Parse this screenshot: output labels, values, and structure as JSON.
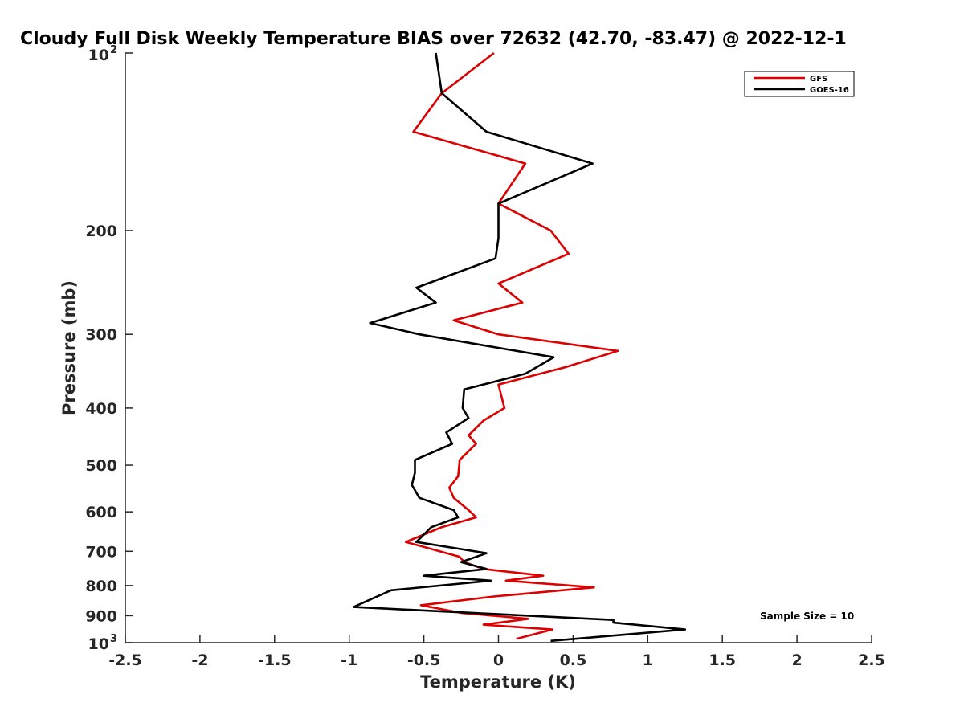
{
  "chart_data": {
    "type": "line",
    "title": "Cloudy Full Disk Weekly Temperature BIAS over 72632 (42.70, -83.47) @ 2022-12-1",
    "xlabel": "Temperature (K)",
    "ylabel": "Pressure (mb)",
    "xlim": [
      -2.5,
      2.5
    ],
    "ylim": [
      1000,
      100
    ],
    "yscale": "log",
    "xticks": [
      -2.5,
      -2,
      -1.5,
      -1,
      -0.5,
      0,
      0.5,
      1,
      1.5,
      2,
      2.5
    ],
    "xtick_labels": [
      "-2.5",
      "-2",
      "-1.5",
      "-1",
      "-0.5",
      "0",
      "0.5",
      "1",
      "1.5",
      "2",
      "2.5"
    ],
    "yticks": [
      {
        "value": 100,
        "base": "10",
        "exp": "2"
      },
      {
        "value": 200,
        "label": "200"
      },
      {
        "value": 300,
        "label": "300"
      },
      {
        "value": 400,
        "label": "400"
      },
      {
        "value": 500,
        "label": "500"
      },
      {
        "value": 600,
        "label": "600"
      },
      {
        "value": 700,
        "label": "700"
      },
      {
        "value": 800,
        "label": "800"
      },
      {
        "value": 900,
        "label": "900"
      },
      {
        "value": 1000,
        "base": "10",
        "exp": "3"
      }
    ],
    "legend_position": "top-right",
    "annotation": "Sample Size = 10",
    "series": [
      {
        "name": "GFS",
        "color": "#dd0000",
        "points": [
          [
            -0.03,
            100
          ],
          [
            -0.38,
            117
          ],
          [
            -0.57,
            136
          ],
          [
            0.18,
            154
          ],
          [
            0.0,
            180
          ],
          [
            0.35,
            200
          ],
          [
            0.47,
            219
          ],
          [
            0.0,
            246
          ],
          [
            0.16,
            265
          ],
          [
            -0.3,
            284
          ],
          [
            0.0,
            300
          ],
          [
            0.8,
            320
          ],
          [
            0.45,
            341
          ],
          [
            0.0,
            365
          ],
          [
            0.04,
            400
          ],
          [
            -0.1,
            420
          ],
          [
            -0.2,
            445
          ],
          [
            -0.15,
            460
          ],
          [
            -0.26,
            490
          ],
          [
            -0.27,
            522
          ],
          [
            -0.33,
            546
          ],
          [
            -0.3,
            568
          ],
          [
            -0.2,
            596
          ],
          [
            -0.15,
            613
          ],
          [
            -0.38,
            637
          ],
          [
            -0.62,
            675
          ],
          [
            -0.26,
            715
          ],
          [
            -0.23,
            730
          ],
          [
            -0.1,
            750
          ],
          [
            0.3,
            770
          ],
          [
            0.05,
            785
          ],
          [
            0.64,
            806
          ],
          [
            -0.03,
            835
          ],
          [
            -0.52,
            864
          ],
          [
            -0.25,
            890
          ],
          [
            0.2,
            911
          ],
          [
            -0.1,
            932
          ],
          [
            0.36,
            950
          ],
          [
            0.12,
            985
          ]
        ]
      },
      {
        "name": "GOES-16",
        "color": "#000000",
        "points": [
          [
            -0.42,
            100
          ],
          [
            -0.38,
            117
          ],
          [
            -0.08,
            136
          ],
          [
            0.63,
            154
          ],
          [
            0.0,
            180
          ],
          [
            0.0,
            206
          ],
          [
            -0.02,
            223
          ],
          [
            -0.55,
            250
          ],
          [
            -0.42,
            265
          ],
          [
            -0.86,
            287
          ],
          [
            -0.53,
            300
          ],
          [
            0.37,
            328
          ],
          [
            0.18,
            350
          ],
          [
            -0.23,
            372
          ],
          [
            -0.24,
            400
          ],
          [
            -0.2,
            416
          ],
          [
            -0.35,
            440
          ],
          [
            -0.31,
            460
          ],
          [
            -0.56,
            490
          ],
          [
            -0.56,
            515
          ],
          [
            -0.58,
            540
          ],
          [
            -0.53,
            568
          ],
          [
            -0.3,
            596
          ],
          [
            -0.27,
            613
          ],
          [
            -0.45,
            637
          ],
          [
            -0.55,
            675
          ],
          [
            -0.08,
            705
          ],
          [
            -0.25,
            730
          ],
          [
            -0.08,
            750
          ],
          [
            -0.5,
            770
          ],
          [
            -0.05,
            785
          ],
          [
            -0.72,
            815
          ],
          [
            -0.97,
            870
          ],
          [
            0.77,
            915
          ],
          [
            0.77,
            925
          ],
          [
            1.25,
            950
          ],
          [
            0.35,
            993
          ]
        ]
      }
    ]
  }
}
